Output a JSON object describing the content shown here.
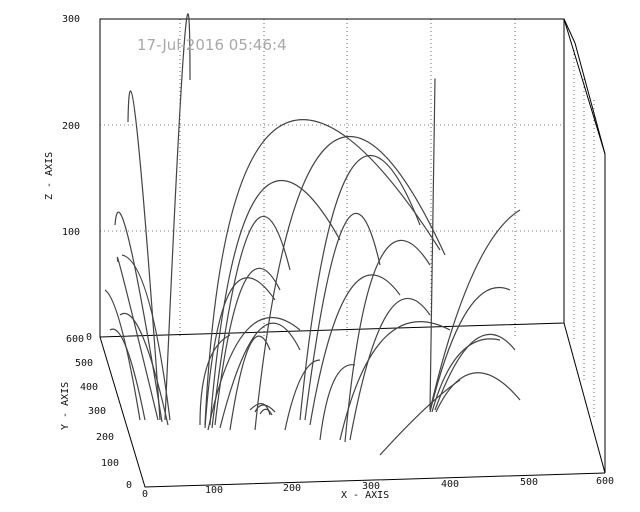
{
  "chart_data": {
    "type": "line",
    "title": "17-Jul-2016 05:46:4",
    "xlabel": "X - AXIS",
    "ylabel": "Y - AXIS",
    "zlabel": "Z - AXIS",
    "x_ticks": [
      "0",
      "100",
      "200",
      "300",
      "400",
      "500",
      "600"
    ],
    "y_ticks": [
      "0",
      "100",
      "200",
      "300",
      "400",
      "500",
      "600"
    ],
    "z_ticks": [
      "0",
      "100",
      "200",
      "300"
    ],
    "xlim": [
      0,
      600
    ],
    "ylim": [
      0,
      600
    ],
    "zlim": [
      0,
      300
    ],
    "grid": true,
    "description_kind": "magnetic field line loops rendered as 3D curves over a box"
  }
}
